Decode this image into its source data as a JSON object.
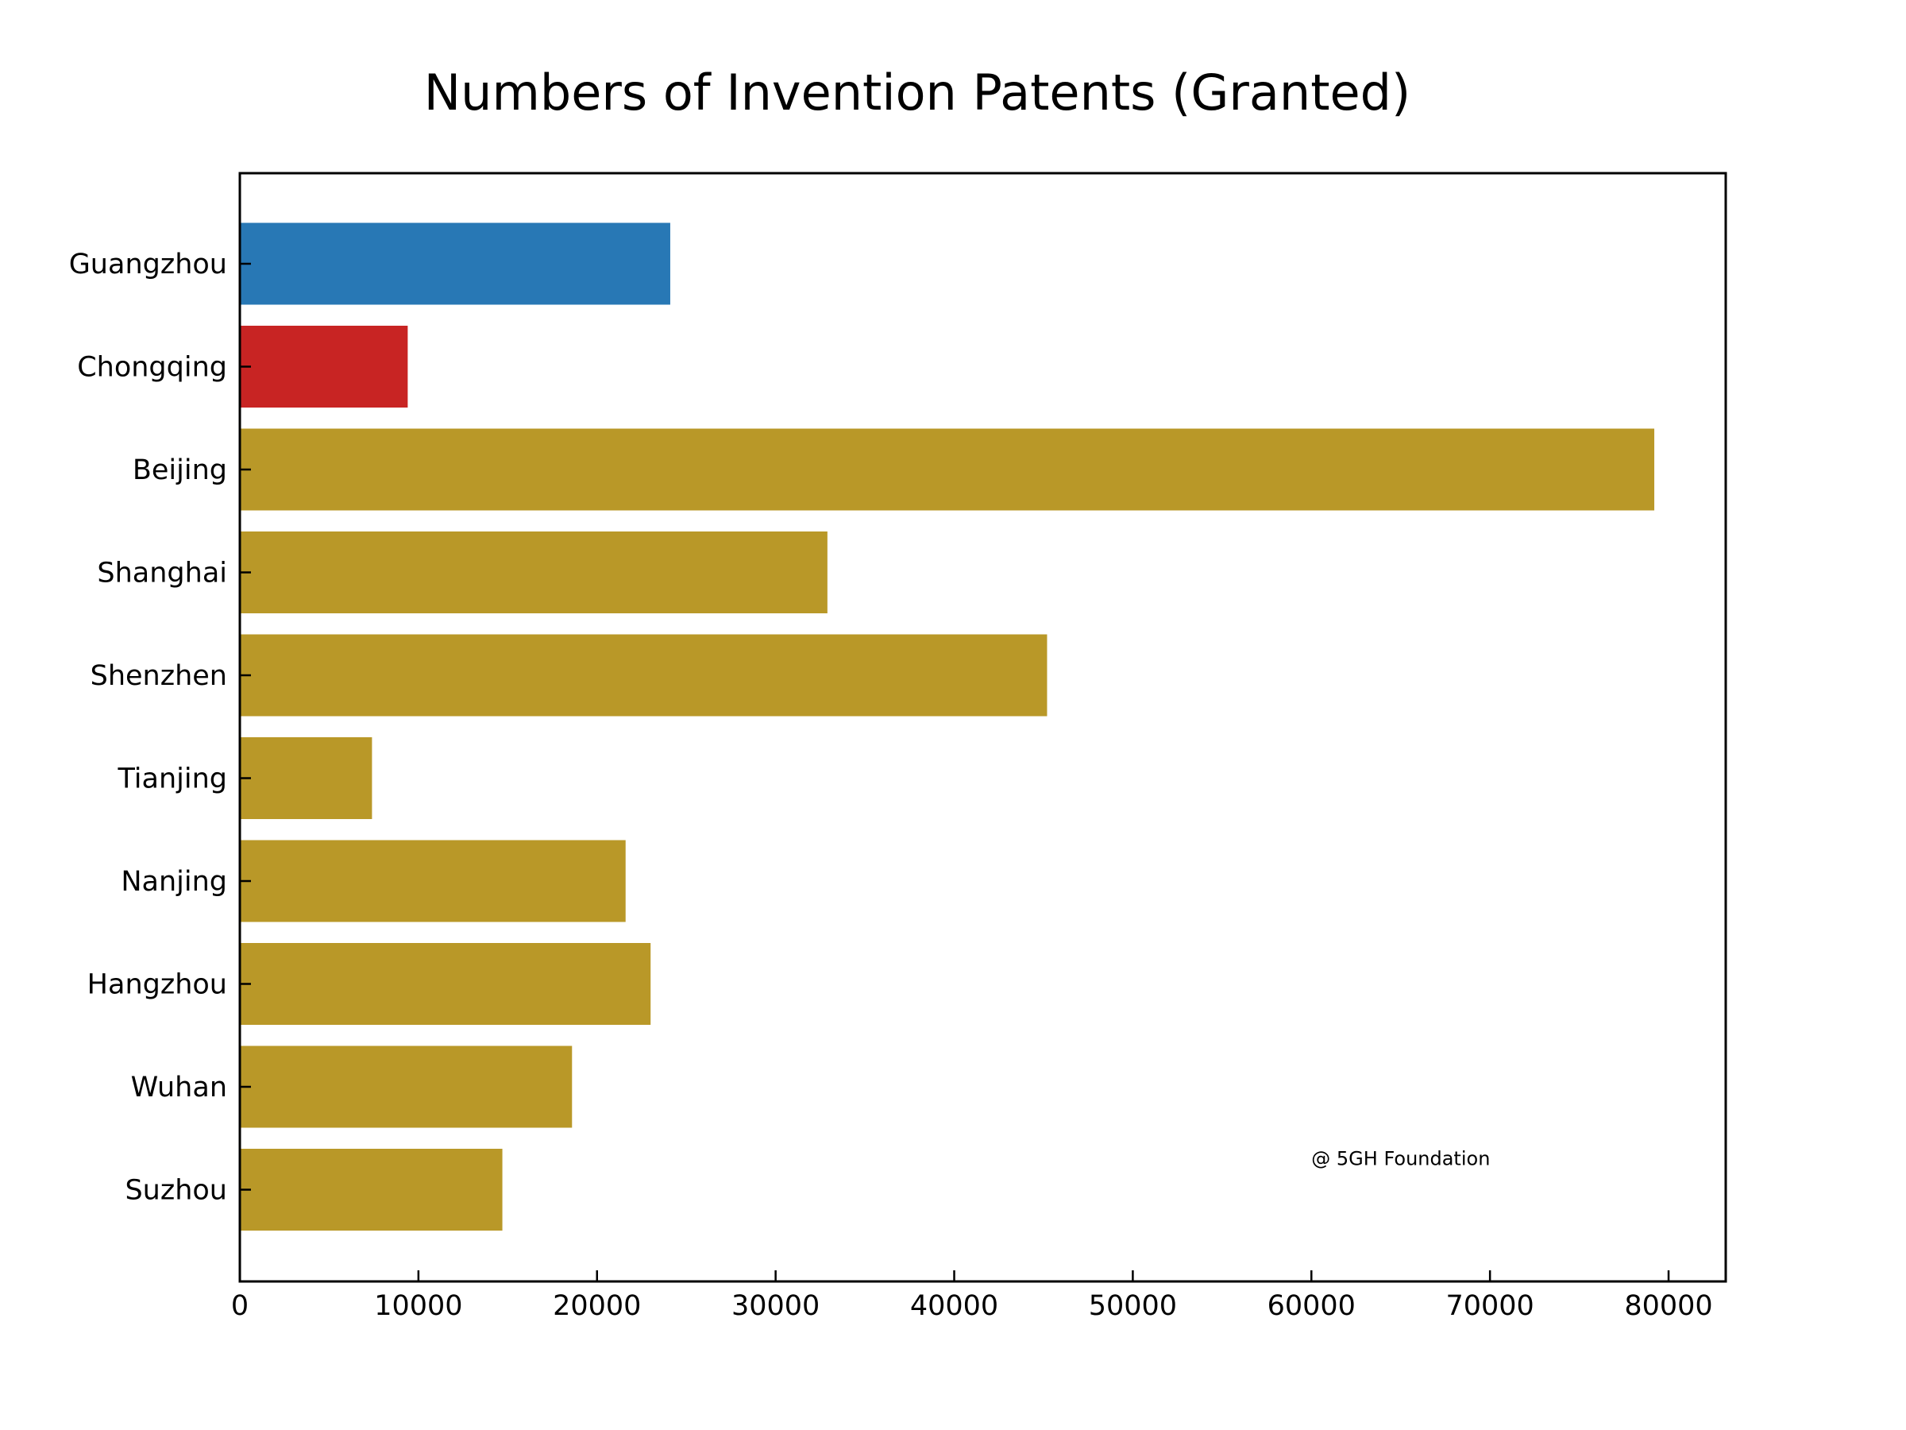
{
  "chart_data": {
    "type": "bar",
    "orientation": "horizontal",
    "title": "Numbers of Invention Patents (Granted)",
    "xlabel": "",
    "ylabel": "",
    "categories": [
      "Guangzhou",
      "Chongqing",
      "Beijing",
      "Shanghai",
      "Shenzhen",
      "Tianjing",
      "Nanjing",
      "Hangzhou",
      "Wuhan",
      "Suzhou"
    ],
    "values": [
      24100,
      9400,
      79200,
      32900,
      45200,
      7400,
      21600,
      23000,
      18600,
      14700
    ],
    "bar_colors": [
      "#2878b5",
      "#c82423",
      "#b99828",
      "#b99828",
      "#b99828",
      "#b99828",
      "#b99828",
      "#b99828",
      "#b99828",
      "#b99828"
    ],
    "xlim": [
      0,
      83200
    ],
    "xticks": [
      0,
      10000,
      20000,
      30000,
      40000,
      50000,
      60000,
      70000,
      80000
    ],
    "grid": false,
    "legend": "none",
    "annotation": {
      "text": "@ 5GH Foundation",
      "x": 60000,
      "y_category_position": 8.7
    }
  }
}
